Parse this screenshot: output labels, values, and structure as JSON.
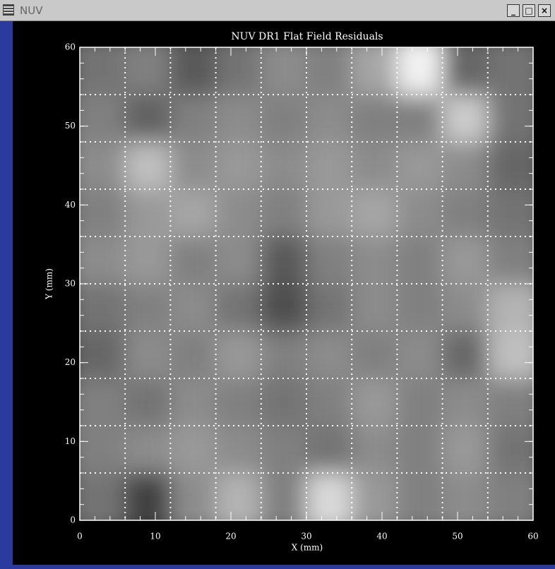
{
  "window": {
    "title": "NUV"
  },
  "chart_data": {
    "type": "heatmap",
    "title": "NUV DR1 Flat Field Residuals",
    "x_label": "X (mm)",
    "y_label": "Y (mm)",
    "xlim": [
      0,
      60
    ],
    "ylim": [
      0,
      60
    ],
    "xticks": [
      0,
      10,
      20,
      30,
      40,
      50,
      60
    ],
    "yticks": [
      0,
      10,
      20,
      30,
      40,
      50,
      60
    ],
    "minor_tick_step": 2,
    "grid": true,
    "grid_lines": [
      6,
      12,
      18,
      24,
      30,
      36,
      42,
      48,
      54
    ],
    "values": [
      [
        0.45,
        0.5,
        0.35,
        0.45,
        0.55,
        0.5,
        0.65,
        0.95,
        0.4,
        0.45
      ],
      [
        0.5,
        0.38,
        0.5,
        0.55,
        0.5,
        0.55,
        0.5,
        0.5,
        0.8,
        0.45
      ],
      [
        0.55,
        0.75,
        0.55,
        0.6,
        0.55,
        0.6,
        0.55,
        0.6,
        0.55,
        0.4
      ],
      [
        0.5,
        0.6,
        0.65,
        0.55,
        0.5,
        0.6,
        0.65,
        0.55,
        0.5,
        0.45
      ],
      [
        0.55,
        0.6,
        0.5,
        0.55,
        0.35,
        0.5,
        0.55,
        0.5,
        0.6,
        0.5
      ],
      [
        0.45,
        0.5,
        0.55,
        0.45,
        0.3,
        0.45,
        0.55,
        0.5,
        0.55,
        0.7
      ],
      [
        0.4,
        0.55,
        0.5,
        0.6,
        0.5,
        0.55,
        0.5,
        0.55,
        0.4,
        0.75
      ],
      [
        0.5,
        0.45,
        0.55,
        0.5,
        0.45,
        0.5,
        0.6,
        0.5,
        0.55,
        0.5
      ],
      [
        0.5,
        0.55,
        0.6,
        0.55,
        0.5,
        0.45,
        0.55,
        0.5,
        0.6,
        0.45
      ],
      [
        0.45,
        0.25,
        0.55,
        0.7,
        0.5,
        0.85,
        0.6,
        0.5,
        0.55,
        0.5
      ]
    ]
  }
}
